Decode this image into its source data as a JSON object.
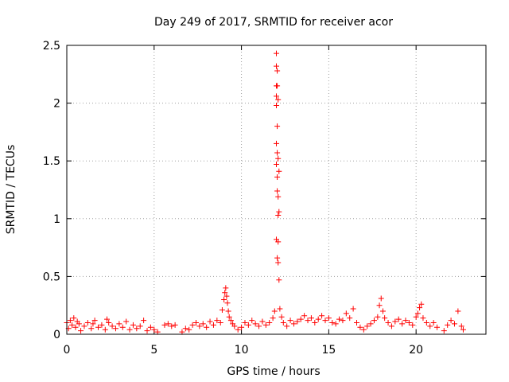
{
  "chart_data": {
    "type": "scatter",
    "title": "Day 249 of 2017, SRMTID for receiver acor",
    "xlabel": "GPS time / hours",
    "ylabel": "SRMTID / TECUs",
    "xlim": [
      0,
      24
    ],
    "ylim": [
      0,
      2.5
    ],
    "x_ticks": [
      0,
      5,
      10,
      15,
      20
    ],
    "x_tick_labels": [
      "0",
      "5",
      "10",
      "15",
      "20"
    ],
    "y_ticks": [
      0,
      0.5,
      1,
      1.5,
      2,
      2.5
    ],
    "y_tick_labels": [
      "0",
      "0.5",
      "1",
      "1.5",
      "2",
      "2.5"
    ],
    "grid": true,
    "marker": "plus",
    "series": [
      {
        "name": "SRMTID",
        "color": "#ff0000",
        "points": [
          [
            0.0,
            0.1
          ],
          [
            0.1,
            0.05
          ],
          [
            0.2,
            0.12
          ],
          [
            0.3,
            0.08
          ],
          [
            0.4,
            0.14
          ],
          [
            0.5,
            0.06
          ],
          [
            0.6,
            0.11
          ],
          [
            0.7,
            0.09
          ],
          [
            0.8,
            0.03
          ],
          [
            1.0,
            0.07
          ],
          [
            1.2,
            0.1
          ],
          [
            1.4,
            0.05
          ],
          [
            1.5,
            0.09
          ],
          [
            1.6,
            0.12
          ],
          [
            1.8,
            0.06
          ],
          [
            2.0,
            0.08
          ],
          [
            2.2,
            0.04
          ],
          [
            2.3,
            0.13
          ],
          [
            2.4,
            0.1
          ],
          [
            2.6,
            0.07
          ],
          [
            2.8,
            0.05
          ],
          [
            3.0,
            0.09
          ],
          [
            3.2,
            0.06
          ],
          [
            3.4,
            0.11
          ],
          [
            3.6,
            0.04
          ],
          [
            3.8,
            0.08
          ],
          [
            4.0,
            0.05
          ],
          [
            4.2,
            0.07
          ],
          [
            4.4,
            0.12
          ],
          [
            4.6,
            0.03
          ],
          [
            4.8,
            0.06
          ],
          [
            5.0,
            0.04
          ],
          [
            5.2,
            0.02
          ],
          [
            5.6,
            0.08
          ],
          [
            5.8,
            0.09
          ],
          [
            6.0,
            0.07
          ],
          [
            6.2,
            0.08
          ],
          [
            6.6,
            0.02
          ],
          [
            6.8,
            0.05
          ],
          [
            7.0,
            0.04
          ],
          [
            7.2,
            0.08
          ],
          [
            7.4,
            0.1
          ],
          [
            7.6,
            0.07
          ],
          [
            7.8,
            0.09
          ],
          [
            8.0,
            0.06
          ],
          [
            8.2,
            0.11
          ],
          [
            8.4,
            0.08
          ],
          [
            8.6,
            0.12
          ],
          [
            8.8,
            0.1
          ],
          [
            8.9,
            0.21
          ],
          [
            9.0,
            0.3
          ],
          [
            9.05,
            0.36
          ],
          [
            9.1,
            0.4
          ],
          [
            9.15,
            0.33
          ],
          [
            9.2,
            0.27
          ],
          [
            9.25,
            0.2
          ],
          [
            9.3,
            0.15
          ],
          [
            9.4,
            0.12
          ],
          [
            9.5,
            0.09
          ],
          [
            9.6,
            0.07
          ],
          [
            9.8,
            0.04
          ],
          [
            10.0,
            0.06
          ],
          [
            10.2,
            0.1
          ],
          [
            10.4,
            0.08
          ],
          [
            10.6,
            0.12
          ],
          [
            10.8,
            0.09
          ],
          [
            11.0,
            0.07
          ],
          [
            11.2,
            0.11
          ],
          [
            11.4,
            0.08
          ],
          [
            11.6,
            0.1
          ],
          [
            11.8,
            0.14
          ],
          [
            11.9,
            0.2
          ],
          [
            12.0,
            2.43
          ],
          [
            12.0,
            2.32
          ],
          [
            12.0,
            2.15
          ],
          [
            12.0,
            2.06
          ],
          [
            12.0,
            1.98
          ],
          [
            12.0,
            1.65
          ],
          [
            12.0,
            1.47
          ],
          [
            12.0,
            0.82
          ],
          [
            12.05,
            2.28
          ],
          [
            12.05,
            2.15
          ],
          [
            12.05,
            1.8
          ],
          [
            12.05,
            1.57
          ],
          [
            12.05,
            1.36
          ],
          [
            12.05,
            1.24
          ],
          [
            12.05,
            0.66
          ],
          [
            12.1,
            2.03
          ],
          [
            12.1,
            1.52
          ],
          [
            12.1,
            1.19
          ],
          [
            12.1,
            1.03
          ],
          [
            12.1,
            0.8
          ],
          [
            12.1,
            0.62
          ],
          [
            12.15,
            1.41
          ],
          [
            12.15,
            1.06
          ],
          [
            12.15,
            0.47
          ],
          [
            12.2,
            0.22
          ],
          [
            12.3,
            0.15
          ],
          [
            12.4,
            0.1
          ],
          [
            12.6,
            0.07
          ],
          [
            12.8,
            0.12
          ],
          [
            13.0,
            0.09
          ],
          [
            13.2,
            0.11
          ],
          [
            13.4,
            0.13
          ],
          [
            13.6,
            0.16
          ],
          [
            13.8,
            0.12
          ],
          [
            14.0,
            0.14
          ],
          [
            14.2,
            0.1
          ],
          [
            14.4,
            0.13
          ],
          [
            14.6,
            0.16
          ],
          [
            14.8,
            0.12
          ],
          [
            15.0,
            0.14
          ],
          [
            15.2,
            0.1
          ],
          [
            15.4,
            0.09
          ],
          [
            15.6,
            0.13
          ],
          [
            15.8,
            0.12
          ],
          [
            16.0,
            0.18
          ],
          [
            16.2,
            0.14
          ],
          [
            16.4,
            0.22
          ],
          [
            16.6,
            0.1
          ],
          [
            16.8,
            0.06
          ],
          [
            17.0,
            0.04
          ],
          [
            17.2,
            0.07
          ],
          [
            17.4,
            0.09
          ],
          [
            17.6,
            0.12
          ],
          [
            17.8,
            0.15
          ],
          [
            17.9,
            0.25
          ],
          [
            18.0,
            0.31
          ],
          [
            18.1,
            0.2
          ],
          [
            18.2,
            0.14
          ],
          [
            18.4,
            0.1
          ],
          [
            18.6,
            0.07
          ],
          [
            18.8,
            0.11
          ],
          [
            19.0,
            0.13
          ],
          [
            19.2,
            0.09
          ],
          [
            19.4,
            0.12
          ],
          [
            19.6,
            0.1
          ],
          [
            19.8,
            0.08
          ],
          [
            20.0,
            0.15
          ],
          [
            20.1,
            0.18
          ],
          [
            20.2,
            0.23
          ],
          [
            20.3,
            0.26
          ],
          [
            20.4,
            0.14
          ],
          [
            20.6,
            0.1
          ],
          [
            20.8,
            0.07
          ],
          [
            21.0,
            0.1
          ],
          [
            21.2,
            0.06
          ],
          [
            21.6,
            0.03
          ],
          [
            21.8,
            0.08
          ],
          [
            22.0,
            0.12
          ],
          [
            22.2,
            0.09
          ],
          [
            22.4,
            0.2
          ],
          [
            22.6,
            0.07
          ],
          [
            22.7,
            0.04
          ]
        ]
      }
    ]
  }
}
